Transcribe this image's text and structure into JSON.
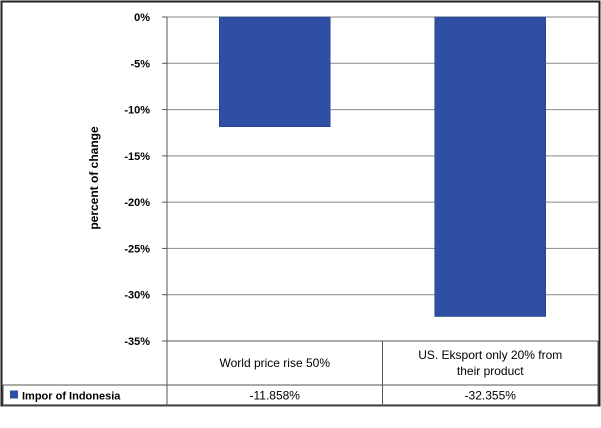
{
  "chart_data": {
    "type": "bar",
    "title": "",
    "ylabel": "percent of change",
    "xlabel": "",
    "categories": [
      "World price rise 50%",
      "US. Eksport only 20% from their product"
    ],
    "category_label_lines": [
      [
        "World price rise 50%"
      ],
      [
        "US. Eksport only 20% from",
        "their product"
      ]
    ],
    "series": [
      {
        "name": "Impor  of Indonesia",
        "values": [
          -11.858,
          -32.355
        ],
        "color": "#2e4fa3"
      }
    ],
    "table_values": [
      "-11.858%",
      "-32.355%"
    ],
    "ylim": [
      -35,
      0
    ],
    "yticks": [
      0,
      -5,
      -10,
      -15,
      -20,
      -25,
      -30,
      -35
    ],
    "ytick_labels": [
      "0%",
      "-5%",
      "-10%",
      "-15%",
      "-20%",
      "-25%",
      "-30%",
      "-35%"
    ],
    "grid": true,
    "legend": "data-table"
  }
}
